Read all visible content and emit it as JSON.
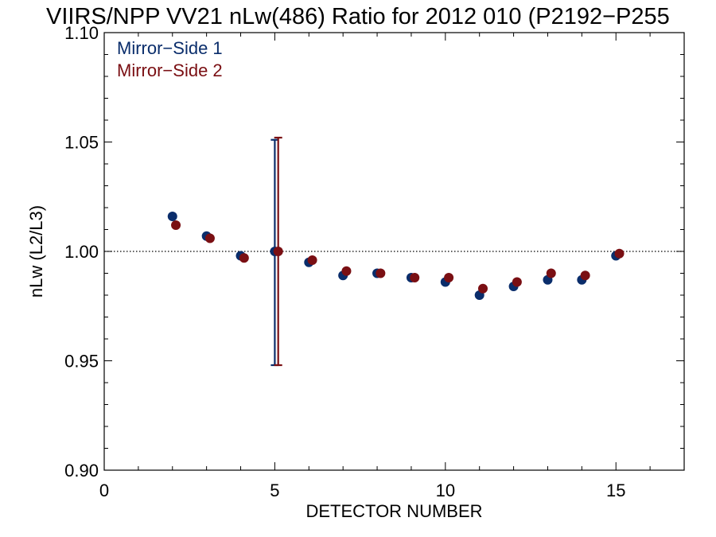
{
  "colors": {
    "mirror_side_1": "#0a2d6b",
    "mirror_side_2": "#7a0f13",
    "axis": "#000000",
    "background": "#ffffff"
  },
  "chart_data": {
    "type": "scatter",
    "title": "VIIRS/NPP VV21 nLw(486) Ratio for 2012 010 (P2192−P255",
    "xlabel": "DETECTOR NUMBER",
    "ylabel": "nLw (L2/L3)",
    "xlim": [
      0,
      17
    ],
    "ylim": [
      0.9,
      1.1
    ],
    "x_ticks": [
      0,
      5,
      10,
      15
    ],
    "x_tick_labels": [
      "0",
      "5",
      "10",
      "15"
    ],
    "y_ticks": [
      0.9,
      0.95,
      1.0,
      1.05,
      1.1
    ],
    "y_tick_labels": [
      "0.90",
      "0.95",
      "1.00",
      "1.05",
      "1.10"
    ],
    "reference_line": 1.0,
    "reference_line_style": "dotted",
    "grid": false,
    "legend_position": "top-left",
    "series": [
      {
        "name": "Mirror−Side 1",
        "color": "#0a2d6b",
        "x": [
          2,
          3,
          4,
          5,
          6,
          7,
          8,
          9,
          10,
          11,
          12,
          13,
          14,
          15
        ],
        "y": [
          1.016,
          1.007,
          0.998,
          1.0,
          0.995,
          0.989,
          0.99,
          0.988,
          0.986,
          0.98,
          0.984,
          0.987,
          0.987,
          0.998
        ],
        "error_bars": [
          {
            "x": 5,
            "low": 0.948,
            "high": 1.051
          }
        ]
      },
      {
        "name": "Mirror−Side 2",
        "color": "#7a0f13",
        "x": [
          2.1,
          3.1,
          4.1,
          5.1,
          6.1,
          7.1,
          8.1,
          9.1,
          10.1,
          11.1,
          12.1,
          13.1,
          14.1,
          15.1
        ],
        "y": [
          1.012,
          1.006,
          0.997,
          1.0,
          0.996,
          0.991,
          0.99,
          0.988,
          0.988,
          0.983,
          0.986,
          0.99,
          0.989,
          0.999
        ],
        "error_bars": [
          {
            "x": 5.1,
            "low": 0.948,
            "high": 1.052
          }
        ]
      }
    ]
  }
}
